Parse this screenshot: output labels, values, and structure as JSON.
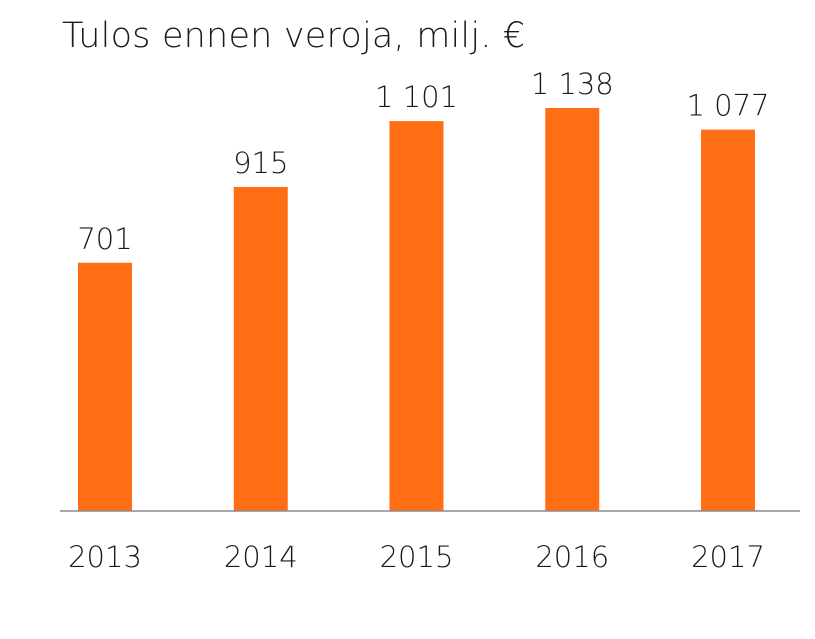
{
  "chart_data": {
    "type": "bar",
    "title": "Tulos ennen veroja, milj. €",
    "categories": [
      "2013",
      "2014",
      "2015",
      "2016",
      "2017"
    ],
    "values": [
      701,
      915,
      1101,
      1138,
      1077
    ],
    "value_labels": [
      "701",
      "915",
      "1 101",
      "1 138",
      "1 077"
    ],
    "xlabel": "",
    "ylabel": "",
    "ylim": [
      0,
      1138
    ],
    "grid": false,
    "legend": "none",
    "colors": {
      "bar": "#ff6e14",
      "axis": "#8c8c8c",
      "text": "#1a1a1a"
    }
  }
}
